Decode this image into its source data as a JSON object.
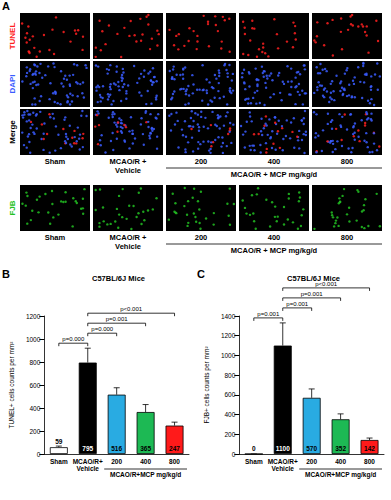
{
  "panel_a": {
    "panel": "A",
    "rows": [
      "TUNEL",
      "DAPI",
      "Merge",
      "FJB"
    ],
    "colors": [
      "#ff2020",
      "#3a5cff",
      "#000000",
      "#22c022"
    ],
    "columns": [
      "Sham",
      "MCAO/R + Vehicle",
      "200",
      "400",
      "800"
    ],
    "group_label": "MCAO/R + MCP mg/kg/d",
    "group_members": [
      "200",
      "400",
      "800"
    ]
  },
  "chart_data": [
    {
      "type": "bar",
      "panel": "B",
      "title": "C57BL/6J Mice",
      "ylabel": "TUNEL+ cells counts per mm²",
      "categories": [
        "Sham",
        "MCAO/R+Vehicle",
        "200",
        "400",
        "800"
      ],
      "values": [
        59,
        795,
        516,
        365,
        247
      ],
      "errors": [
        10,
        125,
        60,
        65,
        30
      ],
      "colors": [
        "#ffffff",
        "#000000",
        "#29abe2",
        "#1db954",
        "#ff1a1a"
      ],
      "group_label": "MCAO/R+MCP mg/kg/d",
      "group_members": [
        "200",
        "400",
        "800"
      ],
      "annotations": [
        {
          "between": [
            "Sham",
            "MCAO/R+Vehicle"
          ],
          "label": "p=0.000"
        },
        {
          "between": [
            "MCAO/R+Vehicle",
            "200"
          ],
          "label": "p=0.000"
        },
        {
          "between": [
            "MCAO/R+Vehicle",
            "400"
          ],
          "label": "p=0.001"
        },
        {
          "between": [
            "MCAO/R+Vehicle",
            "800"
          ],
          "label": "p<0.001"
        }
      ],
      "ylim": [
        0,
        1200
      ],
      "yticks": [
        0,
        200,
        400,
        600,
        800,
        1000,
        1200
      ],
      "grid": false,
      "data_labels": true
    },
    {
      "type": "bar",
      "panel": "C",
      "title": "C57BL/6J Mice",
      "ylabel": "FJB+ cells counts per mm²",
      "categories": [
        "Sham",
        "MCAO/R+Vehicle",
        "200",
        "400",
        "800"
      ],
      "values": [
        0,
        1100,
        570,
        352,
        142
      ],
      "errors": [
        0,
        230,
        90,
        55,
        20
      ],
      "colors": [
        "#ffffff",
        "#000000",
        "#29abe2",
        "#1db954",
        "#ff1a1a"
      ],
      "group_label": "MCAO/R+MCP mg/kg/d",
      "group_members": [
        "200",
        "400",
        "800"
      ],
      "annotations": [
        {
          "between": [
            "Sham",
            "MCAO/R+Vehicle"
          ],
          "label": "p=0.001"
        },
        {
          "between": [
            "MCAO/R+Vehicle",
            "200"
          ],
          "label": "p=0.001"
        },
        {
          "between": [
            "MCAO/R+Vehicle",
            "400"
          ],
          "label": "p=0.001"
        },
        {
          "between": [
            "MCAO/R+Vehicle",
            "800"
          ],
          "label": "p<0.001"
        }
      ],
      "ylim": [
        0,
        1400
      ],
      "yticks": [
        0,
        200,
        400,
        600,
        800,
        1000,
        1200,
        1400
      ],
      "grid": false,
      "data_labels": true
    }
  ]
}
